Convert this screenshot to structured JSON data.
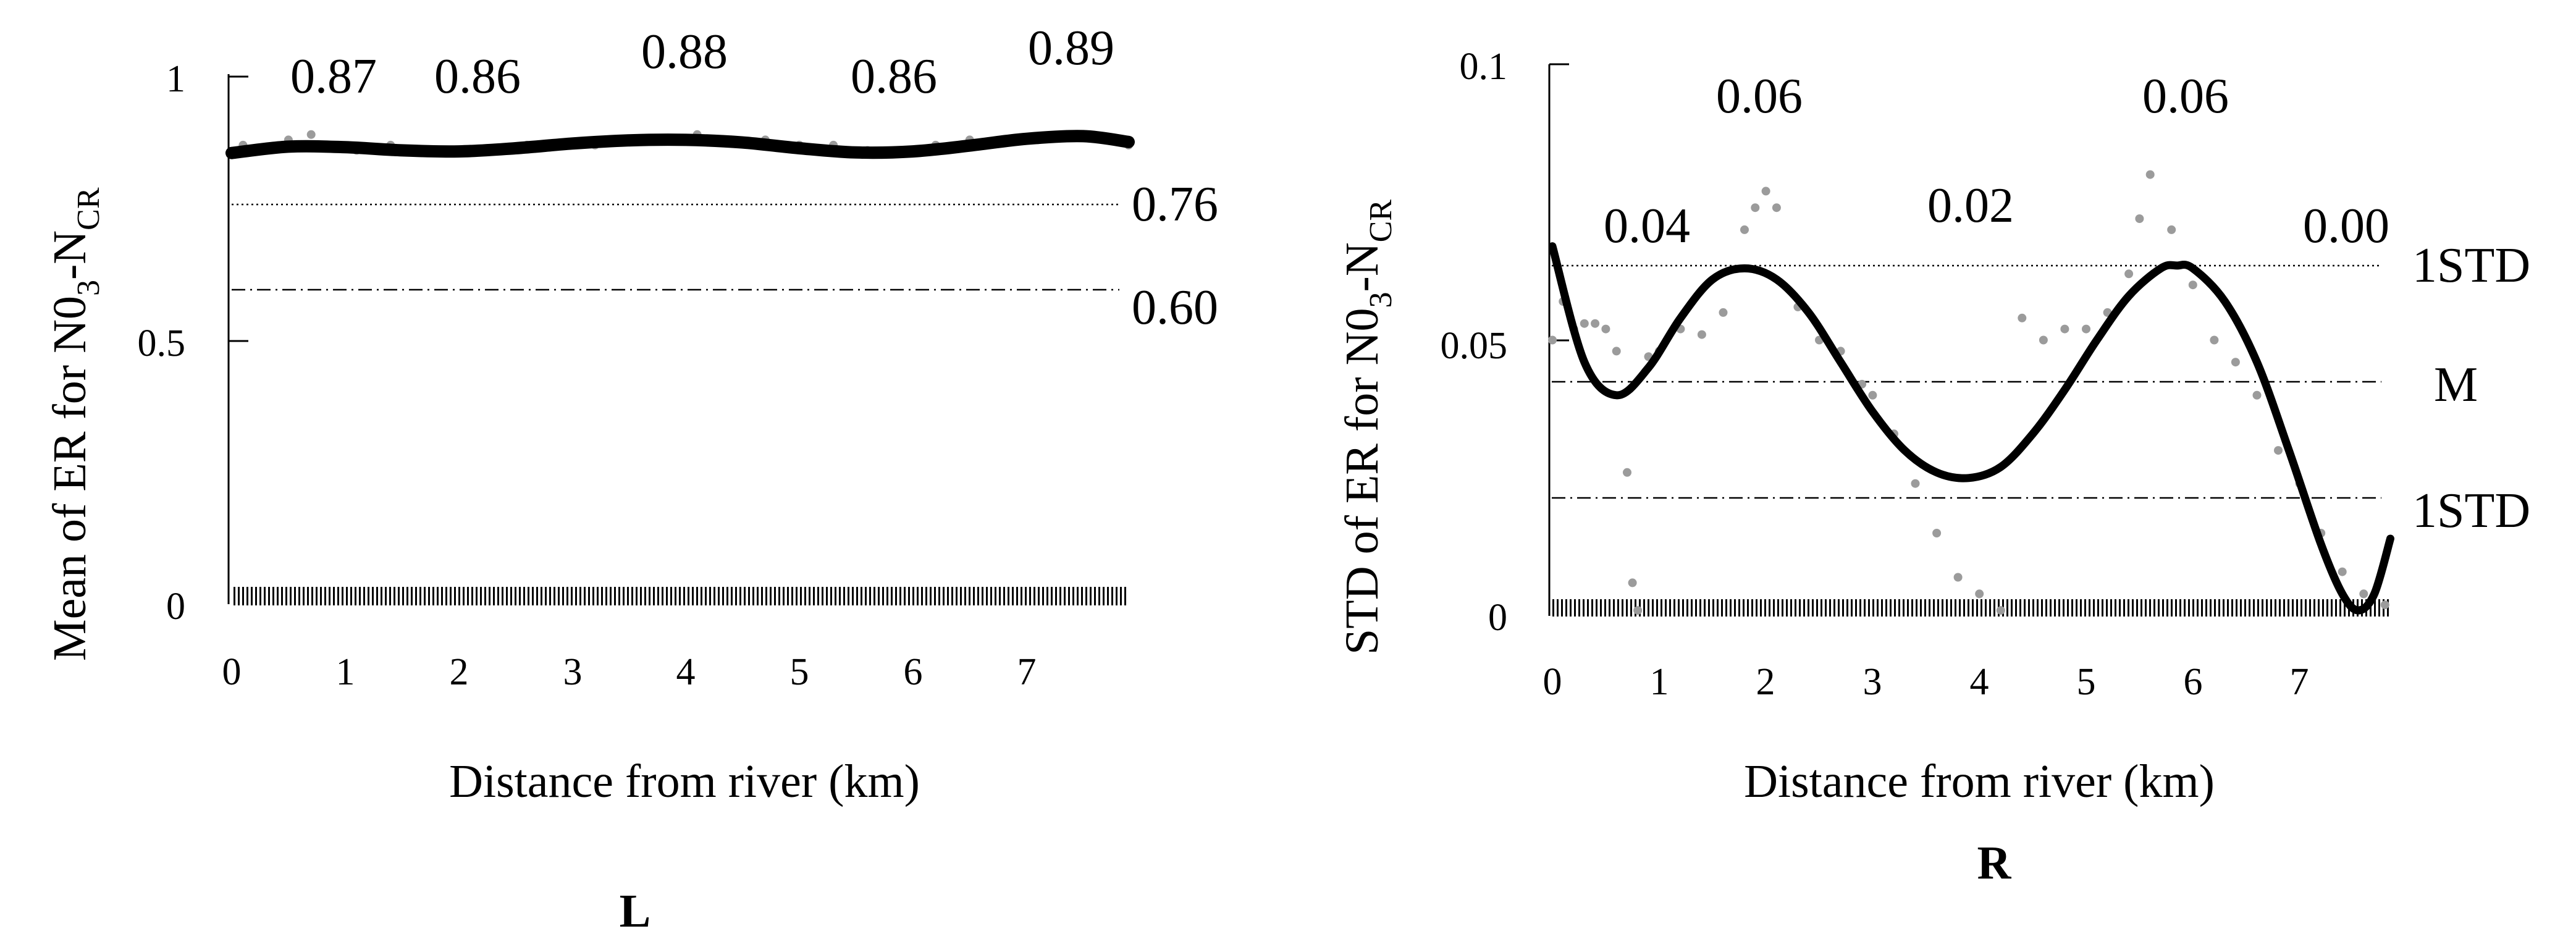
{
  "chart_data": [
    {
      "type": "line",
      "panel_label": "L",
      "xlabel": "Distance from river (km)",
      "ylabel": {
        "main": "Mean of ER for N0",
        "sub1": "3",
        "mid": "-N",
        "sub2": "CR"
      },
      "xlim": [
        0,
        7.9
      ],
      "ylim": [
        0,
        1
      ],
      "xticks": [
        0,
        1,
        2,
        3,
        4,
        5,
        6,
        7
      ],
      "xtick_labels": [
        "0",
        "1",
        "2",
        "3",
        "4",
        "5",
        "6",
        "7"
      ],
      "yticks": [
        0,
        0.5,
        1
      ],
      "ytick_labels": [
        "0",
        "0.5",
        "1"
      ],
      "reference_lines": [
        {
          "y": 0.76,
          "label": "0.76",
          "style": "dotted"
        },
        {
          "y": 0.6,
          "label": "0.60",
          "style": "dashdot"
        }
      ],
      "value_labels": [
        {
          "x": 0.7,
          "text": "0.87"
        },
        {
          "x": 1.8,
          "text": "0.86"
        },
        {
          "x": 3.9,
          "text": "0.88"
        },
        {
          "x": 5.8,
          "text": "0.86"
        },
        {
          "x": 7.3,
          "text": "0.89"
        }
      ],
      "series": [
        {
          "name": "fitted trend",
          "style": "solid-thick",
          "x": [
            0,
            0.5,
            1,
            1.5,
            2,
            2.5,
            3,
            3.5,
            4,
            4.5,
            5,
            5.5,
            6,
            6.5,
            7,
            7.5,
            7.9
          ],
          "y": [
            0.855,
            0.867,
            0.866,
            0.86,
            0.858,
            0.864,
            0.873,
            0.879,
            0.88,
            0.875,
            0.864,
            0.856,
            0.858,
            0.869,
            0.882,
            0.887,
            0.876
          ]
        },
        {
          "name": "observed",
          "style": "points",
          "x": [
            0.1,
            0.3,
            0.5,
            0.7,
            0.8,
            1.1,
            1.4,
            1.7,
            2.0,
            2.3,
            2.6,
            2.9,
            3.2,
            3.5,
            3.8,
            4.1,
            4.4,
            4.7,
            5.0,
            5.3,
            5.6,
            5.9,
            6.2,
            6.5,
            6.8,
            7.1,
            7.4,
            7.7,
            7.9
          ],
          "y": [
            0.87,
            0.86,
            0.88,
            0.89,
            0.87,
            0.86,
            0.87,
            0.86,
            0.86,
            0.86,
            0.87,
            0.87,
            0.87,
            0.88,
            0.88,
            0.89,
            0.88,
            0.88,
            0.87,
            0.87,
            0.86,
            0.86,
            0.87,
            0.88,
            0.88,
            0.88,
            0.89,
            0.88,
            0.87
          ]
        }
      ]
    },
    {
      "type": "line",
      "panel_label": "R",
      "xlabel": "Distance from river (km)",
      "ylabel": {
        "main": "STD of ER for N0",
        "sub1": "3",
        "mid": "-N",
        "sub2": "CR"
      },
      "xlim": [
        0,
        7.9
      ],
      "ylim": [
        0,
        0.1
      ],
      "xticks": [
        0,
        1,
        2,
        3,
        4,
        5,
        6,
        7
      ],
      "xtick_labels": [
        "0",
        "1",
        "2",
        "3",
        "4",
        "5",
        "6",
        "7"
      ],
      "yticks": [
        0,
        0.05,
        0.1
      ],
      "ytick_labels": [
        "0",
        "0.05",
        "0.1"
      ],
      "reference_lines": [
        {
          "y": 0.063,
          "label": "1STD",
          "style": "dotted"
        },
        {
          "y": 0.042,
          "label": "M",
          "style": "dashdot"
        },
        {
          "y": 0.021,
          "label": "1STD",
          "style": "dashdot"
        }
      ],
      "value_labels": [
        {
          "x": 0.8,
          "y": 0.069,
          "text": "0.04"
        },
        {
          "x": 2.1,
          "y": 0.092,
          "text": "0.06"
        },
        {
          "x": 4.2,
          "y": 0.069,
          "text": "0.02"
        },
        {
          "x": 5.6,
          "y": 0.092,
          "text": "0.06"
        },
        {
          "x": 7.5,
          "y": 0.064,
          "text": "0.00"
        }
      ],
      "series": [
        {
          "name": "fitted trend",
          "style": "solid-thick",
          "x": [
            0,
            0.3,
            0.6,
            0.9,
            1.2,
            1.5,
            1.8,
            2.1,
            2.4,
            2.7,
            3.0,
            3.3,
            3.6,
            3.9,
            4.2,
            4.5,
            4.8,
            5.1,
            5.4,
            5.7,
            5.85,
            6.0,
            6.3,
            6.6,
            6.9,
            7.2,
            7.4,
            7.55,
            7.7,
            7.85
          ],
          "y": [
            0.067,
            0.046,
            0.04,
            0.045,
            0.054,
            0.061,
            0.063,
            0.061,
            0.055,
            0.046,
            0.037,
            0.03,
            0.026,
            0.025,
            0.027,
            0.033,
            0.041,
            0.05,
            0.058,
            0.063,
            0.0635,
            0.063,
            0.057,
            0.046,
            0.03,
            0.013,
            0.004,
            0.001,
            0.004,
            0.014
          ]
        },
        {
          "name": "observed",
          "style": "points",
          "x": [
            0.0,
            0.1,
            0.2,
            0.3,
            0.4,
            0.5,
            0.6,
            0.7,
            0.75,
            0.8,
            0.9,
            1.0,
            1.2,
            1.4,
            1.6,
            1.8,
            1.9,
            2.0,
            2.1,
            2.3,
            2.5,
            2.7,
            2.9,
            3.0,
            3.2,
            3.4,
            3.6,
            3.8,
            4.0,
            4.2,
            4.4,
            4.6,
            4.8,
            5.0,
            5.2,
            5.4,
            5.5,
            5.6,
            5.8,
            6.0,
            6.2,
            6.4,
            6.6,
            6.8,
            7.0,
            7.2,
            7.4,
            7.6,
            7.8
          ],
          "y": [
            0.05,
            0.057,
            0.052,
            0.053,
            0.053,
            0.052,
            0.048,
            0.026,
            0.006,
            0.001,
            0.047,
            0.048,
            0.052,
            0.051,
            0.055,
            0.07,
            0.074,
            0.077,
            0.074,
            0.056,
            0.05,
            0.048,
            0.042,
            0.04,
            0.033,
            0.024,
            0.015,
            0.007,
            0.004,
            0.001,
            0.054,
            0.05,
            0.052,
            0.052,
            0.055,
            0.062,
            0.072,
            0.08,
            0.07,
            0.06,
            0.05,
            0.046,
            0.04,
            0.03,
            0.024,
            0.015,
            0.008,
            0.004,
            0.002
          ]
        }
      ]
    }
  ]
}
